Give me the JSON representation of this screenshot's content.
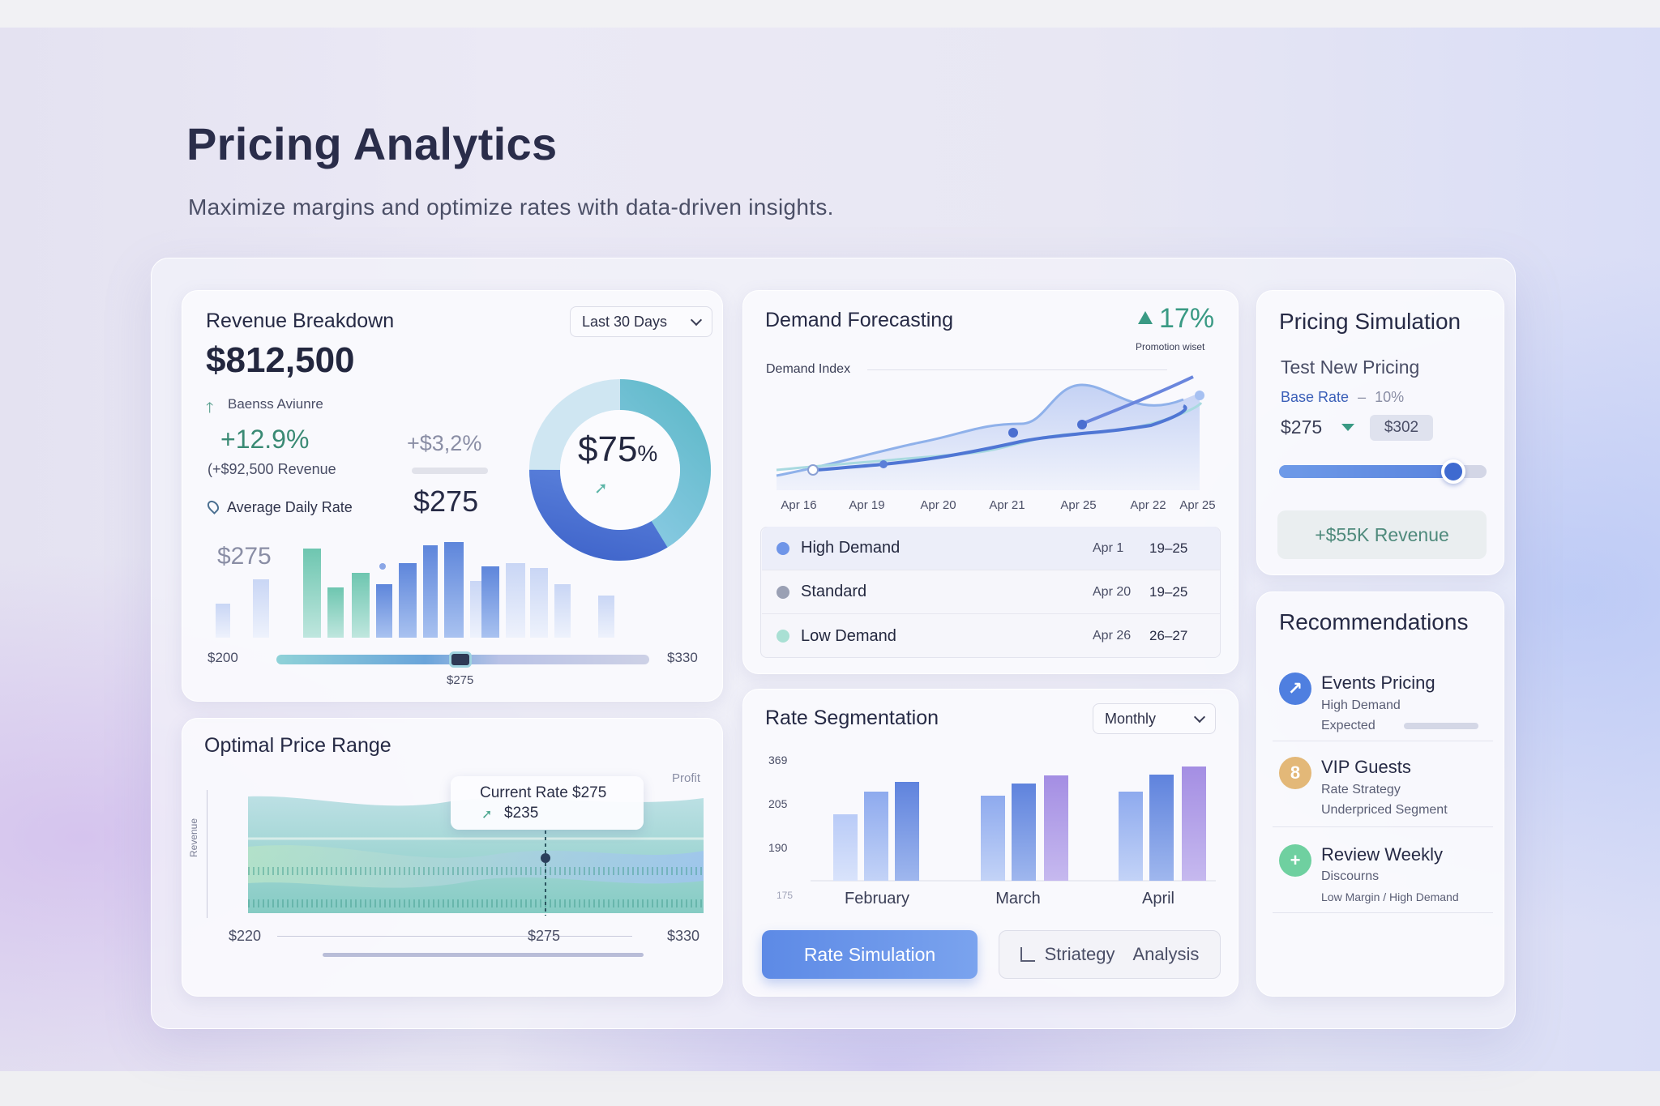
{
  "header": {
    "title": "Pricing Analytics",
    "subtitle": "Maximize margins and optimize rates with data-driven insights."
  },
  "colors": {
    "accent": "#5b7fe0",
    "teal": "#6cc3c6",
    "green": "#3d8a78",
    "purple": "#a08ae0"
  },
  "revenue": {
    "title": "Revenue Breakdown",
    "period": "Last 30 Days",
    "total": "$812,500",
    "trend_label": "Baenss Aviunre",
    "growth": "+12.9%",
    "growth_sub": "(+$92,500 Revenue",
    "secondary": "+$3,2%",
    "adr_label": "Average Daily Rate",
    "adr_value": "$275",
    "chart_label": "$275",
    "donut_value": "$75",
    "donut_unit": "%",
    "range_min": "$200",
    "range_max": "$330",
    "range_value": "$275",
    "donut_share": 0.75
  },
  "optimal": {
    "title": "Optimal Price Range",
    "tooltip_line1": "Current Rate $275",
    "tooltip_line2": "$235",
    "legend": "Profit",
    "axis_label": "Revenue",
    "min": "$220",
    "mid": "$275",
    "max": "$330"
  },
  "demand": {
    "title": "Demand Forecasting",
    "change": "17%",
    "change_sub": "Promotion wiset",
    "axis_title": "Demand Index",
    "dates": [
      "Apr 16",
      "Apr 19",
      "Apr 20",
      "Apr 21",
      "Apr 25",
      "Apr 22",
      "Apr 25"
    ],
    "rows": [
      {
        "label": "High Demand",
        "date": "Apr 1",
        "range": "19–25",
        "color": "#6f95e8"
      },
      {
        "label": "Standard",
        "date": "Apr 20",
        "range": "19–25",
        "color": "#9aa0b4"
      },
      {
        "label": "Low Demand",
        "date": "Apr 26",
        "range": "26–27",
        "color": "#a9e0d4"
      }
    ]
  },
  "segmentation": {
    "title": "Rate Segmentation",
    "period": "Monthly",
    "yticks": [
      "369",
      "205",
      "190",
      "175"
    ],
    "months": [
      "February",
      "March",
      "April"
    ],
    "btn_sim": "Rate Simulation",
    "btn_strategy": "Striategy",
    "btn_analysis": "Analysis"
  },
  "simulation": {
    "title": "Pricing Simulation",
    "subtitle": "Test New Pricing",
    "base_label": "Base Rate",
    "base_sep": "–",
    "base_pct": "10%",
    "current": "$275",
    "proposed": "$302",
    "revenue_btn": "+$55K Revenue",
    "slider_level": 0.84
  },
  "recommendations": {
    "title": "Recommendations",
    "items": [
      {
        "title": "Events Pricing",
        "line1": "High Demand",
        "line2": "Expected",
        "icon": "trend-up-icon",
        "color": "#4f7fe0"
      },
      {
        "title": "VIP Guests",
        "line1": "Rate Strategy",
        "line2": "Underpriced Segment",
        "icon": "vip-icon",
        "color": "#e3b878"
      },
      {
        "title": "Review Weekly",
        "line1": "Discourns",
        "line2": "Low Margin / High Demand",
        "icon": "plus-icon",
        "color": "#6fd0a0"
      }
    ]
  }
}
